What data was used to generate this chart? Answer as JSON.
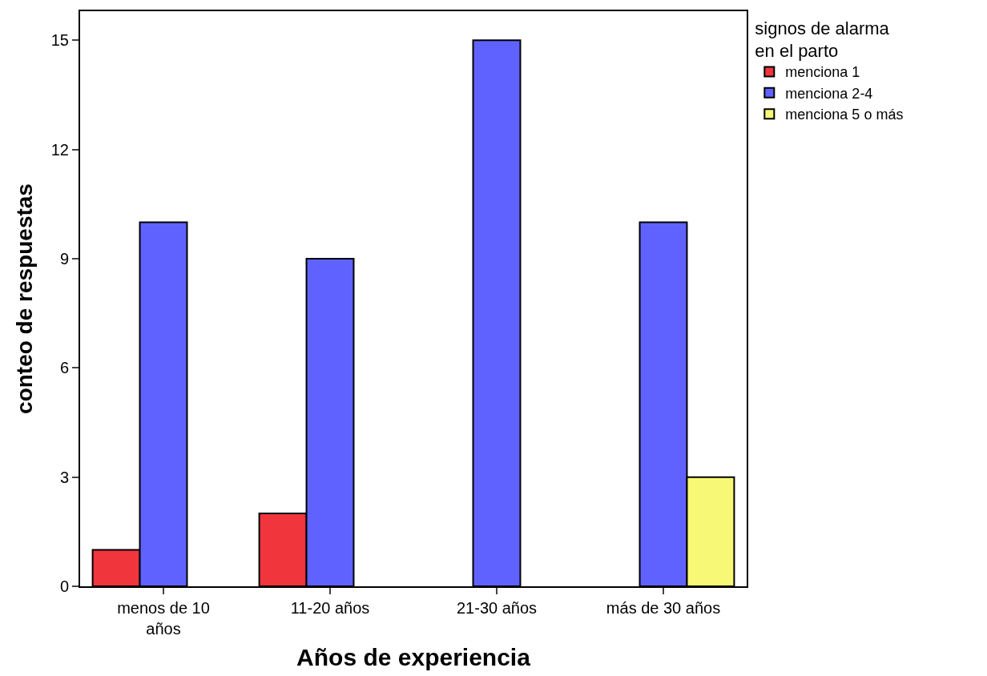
{
  "chart_data": {
    "type": "bar",
    "xlabel": "Años de experiencia",
    "ylabel": "conteo de respuestas",
    "legend_title": "signos de alarma\nen el parto",
    "categories": [
      "menos de 10\naños",
      "11-20 años",
      "21-30 años",
      "más de 30 años"
    ],
    "series": [
      {
        "name": "menciona 1",
        "color": "#f0353d",
        "values": [
          1,
          2,
          null,
          null
        ]
      },
      {
        "name": "menciona 2-4",
        "color": "#5f62fe",
        "values": [
          10,
          9,
          15,
          10
        ]
      },
      {
        "name": "menciona 5 o más",
        "color": "#f8f877",
        "values": [
          null,
          null,
          null,
          3
        ]
      }
    ],
    "ylim": [
      0,
      15.8
    ],
    "yticks": [
      0,
      3,
      6,
      9,
      12,
      15
    ],
    "legend": "top right"
  }
}
